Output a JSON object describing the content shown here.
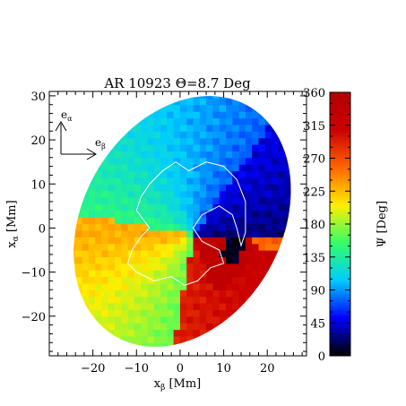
{
  "chart_data": {
    "type": "heatmap",
    "title": "AR 10923 Θ=8.7 Deg",
    "xlabel": {
      "main": "x",
      "sub": "β",
      "unit": "[Mm]"
    },
    "ylabel": {
      "main": "x",
      "sub": "α",
      "unit": "[Mm]"
    },
    "xlim": [
      -30,
      29
    ],
    "ylim": [
      -29,
      31
    ],
    "xticks": [
      -20,
      -10,
      0,
      10,
      20
    ],
    "yticks": [
      -20,
      -10,
      0,
      10,
      20,
      30
    ],
    "xticks_labels": [
      "−20",
      "−10",
      "0",
      "10",
      "20"
    ],
    "yticks_labels": [
      "−20",
      "−10",
      "0",
      "10",
      "20",
      "30"
    ],
    "colorbar": {
      "label": "Ψ [Deg]",
      "range": [
        0,
        360
      ],
      "ticks": [
        0,
        45,
        90,
        135,
        180,
        225,
        270,
        315,
        360
      ],
      "ticks_labels": [
        "0",
        "45",
        "90",
        "135",
        "180",
        "225",
        "270",
        "315",
        "360"
      ],
      "colormap": [
        "#000000",
        "#0000ff",
        "#00ccff",
        "#33ff66",
        "#ffee00",
        "#ff6600",
        "#cc0000",
        "#b30000"
      ]
    },
    "field_of_view": {
      "shape": "ellipse",
      "center": [
        0.5,
        1.5
      ],
      "semi_major": 30.5,
      "semi_minor": 22.5,
      "tilt_deg": -60
    },
    "field_sample_grid": {
      "description_units": "Mm",
      "samples": [
        {
          "x": -15,
          "y": 15,
          "psi": 150
        },
        {
          "x": 0,
          "y": 22,
          "psi": 100
        },
        {
          "x": 12,
          "y": 8,
          "psi": 40
        },
        {
          "x": 15,
          "y": -5,
          "psi": 320
        },
        {
          "x": 5,
          "y": -15,
          "psi": 320
        },
        {
          "x": -10,
          "y": -15,
          "psi": 230
        },
        {
          "x": -20,
          "y": 0,
          "psi": 185
        }
      ]
    },
    "contour_color": "#ffffff",
    "annotations": {
      "basis_vectors": [
        {
          "main": "e",
          "sub": "α"
        },
        {
          "main": "e",
          "sub": "β"
        }
      ]
    }
  }
}
